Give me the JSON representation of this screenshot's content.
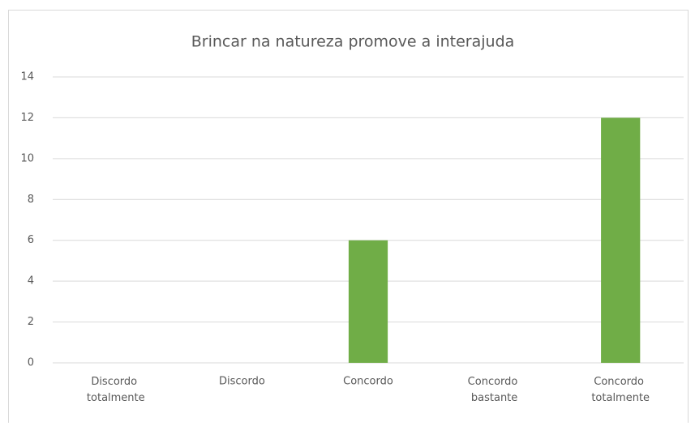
{
  "chart_data": {
    "type": "bar",
    "title": "Brincar na natureza promove a interajuda",
    "categories": [
      "Discordo totalmente",
      "Discordo",
      "Concordo",
      "Concordo bastante",
      "Concordo totalmente"
    ],
    "values": [
      0,
      0,
      6,
      0,
      12
    ],
    "color": "#70ad47",
    "ylim": [
      0,
      14
    ],
    "yticks": [
      0,
      2,
      4,
      6,
      8,
      10,
      12,
      14
    ],
    "grid": true
  }
}
